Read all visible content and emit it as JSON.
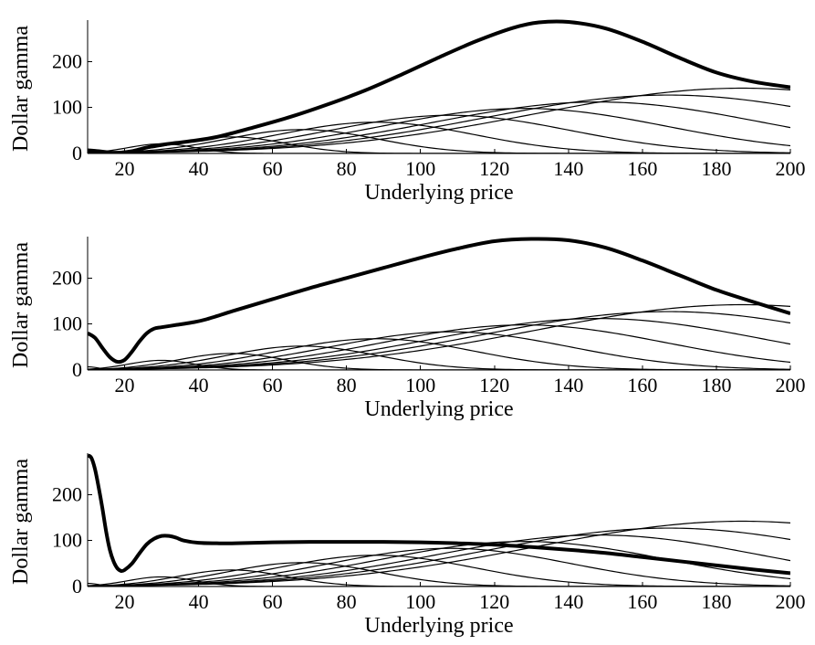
{
  "chart_data": [
    {
      "type": "line",
      "xlabel": "Underlying price",
      "ylabel": "Dollar gamma",
      "xlim": [
        10,
        200
      ],
      "ylim": [
        0,
        290
      ],
      "xticks": [
        20,
        40,
        60,
        80,
        100,
        120,
        140,
        160,
        180,
        200
      ],
      "yticks": [
        0,
        100,
        200
      ],
      "series": [
        {
          "role": "individual",
          "peak_x": 10,
          "peak_y": 7
        },
        {
          "role": "individual",
          "peak_x": 30,
          "peak_y": 21
        },
        {
          "role": "individual",
          "peak_x": 49,
          "peak_y": 36
        },
        {
          "role": "individual",
          "peak_x": 68,
          "peak_y": 52
        },
        {
          "role": "individual",
          "peak_x": 88,
          "peak_y": 68
        },
        {
          "role": "individual",
          "peak_x": 108,
          "peak_y": 83
        },
        {
          "role": "individual",
          "peak_x": 128,
          "peak_y": 98
        },
        {
          "role": "individual",
          "peak_x": 148,
          "peak_y": 112
        },
        {
          "role": "individual",
          "peak_x": 167,
          "peak_y": 127
        },
        {
          "role": "individual",
          "peak_x": 187,
          "peak_y": 142
        },
        {
          "role": "total",
          "x": [
            10,
            13,
            16,
            19,
            22,
            26,
            30,
            34,
            38,
            45,
            55,
            65,
            75,
            85,
            95,
            105,
            115,
            125,
            132,
            140,
            150,
            160,
            170,
            180,
            190,
            200
          ],
          "y": [
            7,
            5,
            2,
            2,
            5,
            13,
            19,
            23,
            27,
            36,
            57,
            80,
            107,
            137,
            172,
            209,
            244,
            273,
            285,
            286,
            272,
            243,
            208,
            176,
            156,
            144
          ]
        }
      ]
    },
    {
      "type": "line",
      "xlabel": "Underlying price",
      "ylabel": "Dollar gamma",
      "xlim": [
        10,
        200
      ],
      "ylim": [
        0,
        290
      ],
      "xticks": [
        20,
        40,
        60,
        80,
        100,
        120,
        140,
        160,
        180,
        200
      ],
      "yticks": [
        0,
        100,
        200
      ],
      "series": [
        {
          "role": "individual",
          "peak_x": 10,
          "peak_y": 7
        },
        {
          "role": "individual",
          "peak_x": 30,
          "peak_y": 21
        },
        {
          "role": "individual",
          "peak_x": 49,
          "peak_y": 36
        },
        {
          "role": "individual",
          "peak_x": 68,
          "peak_y": 52
        },
        {
          "role": "individual",
          "peak_x": 88,
          "peak_y": 68
        },
        {
          "role": "individual",
          "peak_x": 108,
          "peak_y": 83
        },
        {
          "role": "individual",
          "peak_x": 128,
          "peak_y": 98
        },
        {
          "role": "individual",
          "peak_x": 148,
          "peak_y": 112
        },
        {
          "role": "individual",
          "peak_x": 167,
          "peak_y": 127
        },
        {
          "role": "individual",
          "peak_x": 187,
          "peak_y": 142
        },
        {
          "role": "total",
          "x": [
            10,
            12,
            14,
            16,
            18,
            20,
            22,
            24,
            26,
            28,
            30,
            34,
            38,
            42,
            50,
            60,
            70,
            80,
            90,
            100,
            110,
            120,
            130,
            140,
            150,
            160,
            170,
            180,
            190,
            200
          ],
          "y": [
            80,
            70,
            48,
            28,
            18,
            22,
            40,
            62,
            80,
            90,
            93,
            98,
            103,
            110,
            130,
            154,
            178,
            200,
            222,
            244,
            264,
            280,
            285,
            282,
            266,
            238,
            206,
            174,
            148,
            123
          ]
        }
      ]
    },
    {
      "type": "line",
      "xlabel": "Underlying price",
      "ylabel": "Dollar gamma",
      "xlim": [
        10,
        200
      ],
      "ylim": [
        0,
        290
      ],
      "xticks": [
        20,
        40,
        60,
        80,
        100,
        120,
        140,
        160,
        180,
        200
      ],
      "yticks": [
        0,
        100,
        200
      ],
      "series": [
        {
          "role": "individual",
          "peak_x": 10,
          "peak_y": 7
        },
        {
          "role": "individual",
          "peak_x": 30,
          "peak_y": 21
        },
        {
          "role": "individual",
          "peak_x": 49,
          "peak_y": 36
        },
        {
          "role": "individual",
          "peak_x": 68,
          "peak_y": 52
        },
        {
          "role": "individual",
          "peak_x": 88,
          "peak_y": 68
        },
        {
          "role": "individual",
          "peak_x": 108,
          "peak_y": 83
        },
        {
          "role": "individual",
          "peak_x": 128,
          "peak_y": 98
        },
        {
          "role": "individual",
          "peak_x": 148,
          "peak_y": 112
        },
        {
          "role": "individual",
          "peak_x": 167,
          "peak_y": 127
        },
        {
          "role": "individual",
          "peak_x": 187,
          "peak_y": 142
        },
        {
          "role": "total",
          "x": [
            10,
            11,
            12,
            13,
            14,
            15,
            16,
            17,
            18,
            19,
            20,
            22,
            24,
            26,
            28,
            30,
            32,
            34,
            36,
            40,
            45,
            50,
            60,
            70,
            80,
            90,
            100,
            110,
            120,
            130,
            140,
            150,
            160,
            170,
            180,
            190,
            200
          ],
          "y": [
            285,
            280,
            255,
            215,
            170,
            120,
            80,
            55,
            40,
            34,
            36,
            50,
            72,
            92,
            104,
            110,
            110,
            106,
            100,
            95,
            94,
            94,
            96,
            97,
            97,
            97,
            96,
            94,
            91,
            86,
            80,
            73,
            64,
            55,
            46,
            37,
            29
          ]
        }
      ]
    }
  ]
}
